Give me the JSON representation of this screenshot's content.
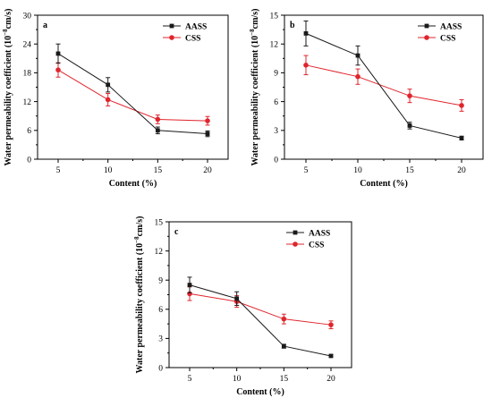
{
  "colors": {
    "AASS": "#1a1a1a",
    "CSS": "#e0242c",
    "axis": "#000000"
  },
  "chart_data": [
    {
      "type": "line",
      "panel": "a",
      "xlabel": "Content (%)",
      "ylabel": "Water permeability coefficient (10",
      "ylabel_exp": "−8",
      "ylabel_unit": "cm/s)",
      "x": [
        5,
        10,
        15,
        20
      ],
      "xticks": [
        "5",
        "10",
        "15",
        "20"
      ],
      "ylim": [
        0,
        30
      ],
      "yticks": [
        "0",
        "6",
        "12",
        "18",
        "24",
        "30"
      ],
      "legend": "top-right",
      "grid": false,
      "series": [
        {
          "name": "AASS",
          "values": [
            22.0,
            15.5,
            6.0,
            5.3
          ],
          "errors": [
            2.0,
            1.5,
            0.7,
            0.6
          ]
        },
        {
          "name": "CSS",
          "values": [
            18.6,
            12.4,
            8.3,
            8.0
          ],
          "errors": [
            1.5,
            1.3,
            0.9,
            0.9
          ]
        }
      ]
    },
    {
      "type": "line",
      "panel": "b",
      "xlabel": "Content (%)",
      "ylabel": "Water permeability coefficient (10",
      "ylabel_exp": "−8",
      "ylabel_unit": "cm/s)",
      "x": [
        5,
        10,
        15,
        20
      ],
      "xticks": [
        "5",
        "10",
        "15",
        "20"
      ],
      "ylim": [
        0,
        15
      ],
      "yticks": [
        "0",
        "3",
        "6",
        "9",
        "12",
        "15"
      ],
      "legend": "top-right",
      "grid": false,
      "series": [
        {
          "name": "AASS",
          "values": [
            13.1,
            10.8,
            3.5,
            2.2
          ],
          "errors": [
            1.3,
            1.0,
            0.35,
            0.2
          ]
        },
        {
          "name": "CSS",
          "values": [
            9.8,
            8.6,
            6.6,
            5.6
          ],
          "errors": [
            1.0,
            0.8,
            0.7,
            0.6
          ]
        }
      ]
    },
    {
      "type": "line",
      "panel": "c",
      "xlabel": "Content (%)",
      "ylabel": "Water permeability coefficient (10",
      "ylabel_exp": "−8",
      "ylabel_unit": "cm/s)",
      "x": [
        5,
        10,
        15,
        20
      ],
      "xticks": [
        "5",
        "10",
        "15",
        "20"
      ],
      "ylim": [
        0,
        15
      ],
      "yticks": [
        "0",
        "3",
        "6",
        "9",
        "12",
        "15"
      ],
      "legend": "top-right",
      "grid": false,
      "series": [
        {
          "name": "AASS",
          "values": [
            8.5,
            7.1,
            2.2,
            1.2
          ],
          "errors": [
            0.8,
            0.7,
            0.2,
            0.1
          ]
        },
        {
          "name": "CSS",
          "values": [
            7.6,
            6.8,
            5.0,
            4.4
          ],
          "errors": [
            0.7,
            0.6,
            0.5,
            0.4
          ]
        }
      ]
    }
  ]
}
